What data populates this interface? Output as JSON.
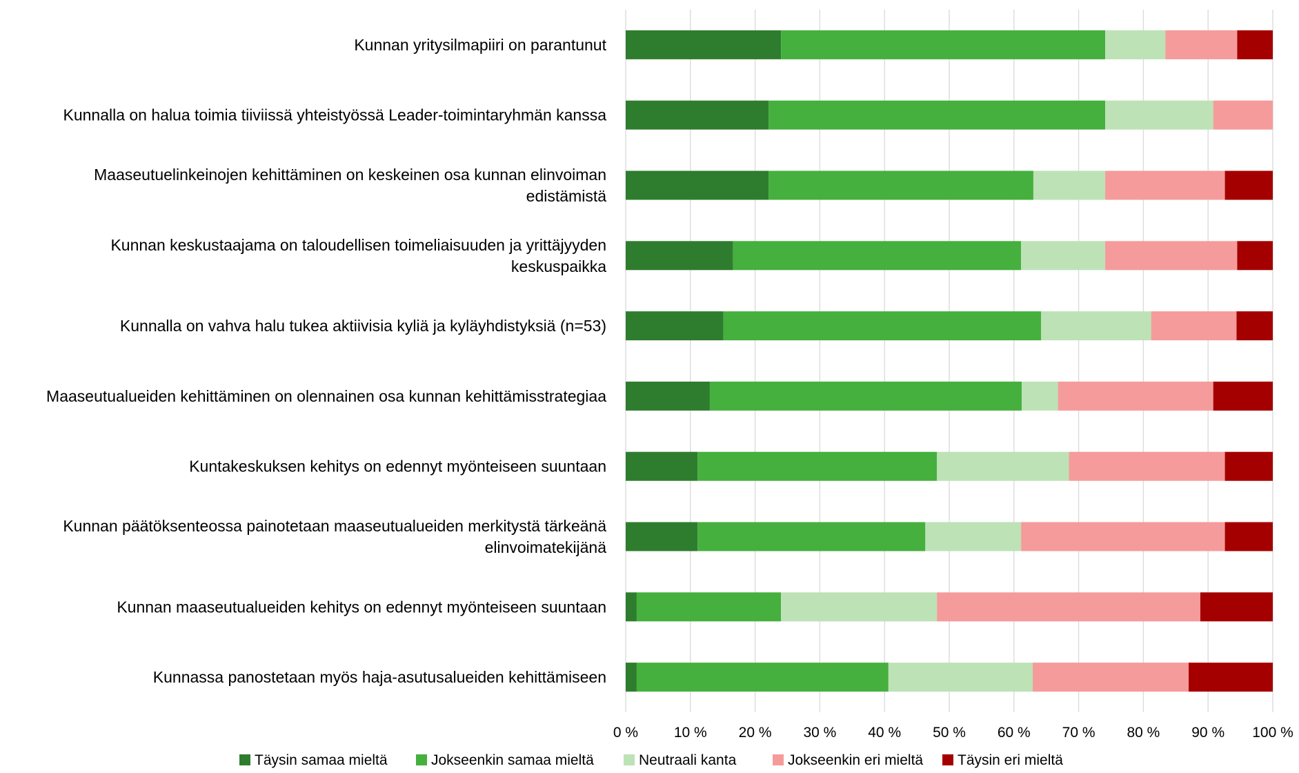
{
  "chart_data": {
    "type": "bar",
    "orientation": "horizontal",
    "stacked": true,
    "percent_stacked": true,
    "title": "",
    "xlabel": "",
    "ylabel": "",
    "xlim": [
      0,
      100
    ],
    "grid": true,
    "legend_position": "bottom",
    "x_ticks": [
      "0 %",
      "10 %",
      "20 %",
      "30 %",
      "40 %",
      "50 %",
      "60 %",
      "70 %",
      "80 %",
      "90 %",
      "100 %"
    ],
    "categories": [
      [
        "Kunnan yritysilmapiiri on parantunut"
      ],
      [
        "Kunnalla on halua toimia tiiviissä yhteistyössä Leader-toimintaryhmän kanssa"
      ],
      [
        "Maaseutuelinkeinojen kehittäminen on keskeinen osa kunnan elinvoiman",
        "edistämistä"
      ],
      [
        "Kunnan keskustaajama on taloudellisen toimeliaisuuden ja yrittäjyyden",
        "keskuspaikka"
      ],
      [
        "Kunnalla on vahva halu tukea aktiivisia kyliä ja kyläyhdistyksiä (n=53)"
      ],
      [
        "Maaseutualueiden kehittäminen on olennainen osa kunnan kehittämisstrategiaa"
      ],
      [
        "Kuntakeskuksen kehitys on edennyt myönteiseen suuntaan"
      ],
      [
        "Kunnan päätöksenteossa painotetaan maaseutualueiden merkitystä tärkeänä",
        "elinvoimatekijänä"
      ],
      [
        "Kunnan maaseutualueiden kehitys on edennyt myönteiseen suuntaan"
      ],
      [
        "Kunnassa panostetaan myös haja-asutusalueiden kehittämiseen"
      ]
    ],
    "series": [
      {
        "name": "Täysin samaa mieltä",
        "color": "#2e7d2e",
        "values": [
          24.0,
          22.1,
          22.1,
          16.6,
          15.1,
          13.0,
          11.1,
          11.1,
          1.7,
          1.7
        ]
      },
      {
        "name": "Jokseenkin samaa mieltä",
        "color": "#45b03d",
        "values": [
          50.1,
          52.0,
          40.9,
          44.5,
          49.1,
          48.2,
          37.0,
          35.2,
          22.3,
          38.9
        ]
      },
      {
        "name": "Neutraali kanta",
        "color": "#bde2b6",
        "values": [
          9.3,
          16.7,
          11.1,
          13.0,
          17.0,
          5.6,
          20.4,
          14.8,
          24.1,
          22.3
        ]
      },
      {
        "name": "Jokseenkin eri mieltä",
        "color": "#f59b9b",
        "values": [
          11.1,
          9.2,
          18.5,
          20.4,
          13.2,
          24.0,
          24.1,
          31.5,
          40.7,
          24.1
        ]
      },
      {
        "name": "Täysin eri mieltä",
        "color": "#a50000",
        "values": [
          5.5,
          0.0,
          7.4,
          5.5,
          5.6,
          9.2,
          7.4,
          7.4,
          11.2,
          13.0
        ]
      }
    ]
  }
}
